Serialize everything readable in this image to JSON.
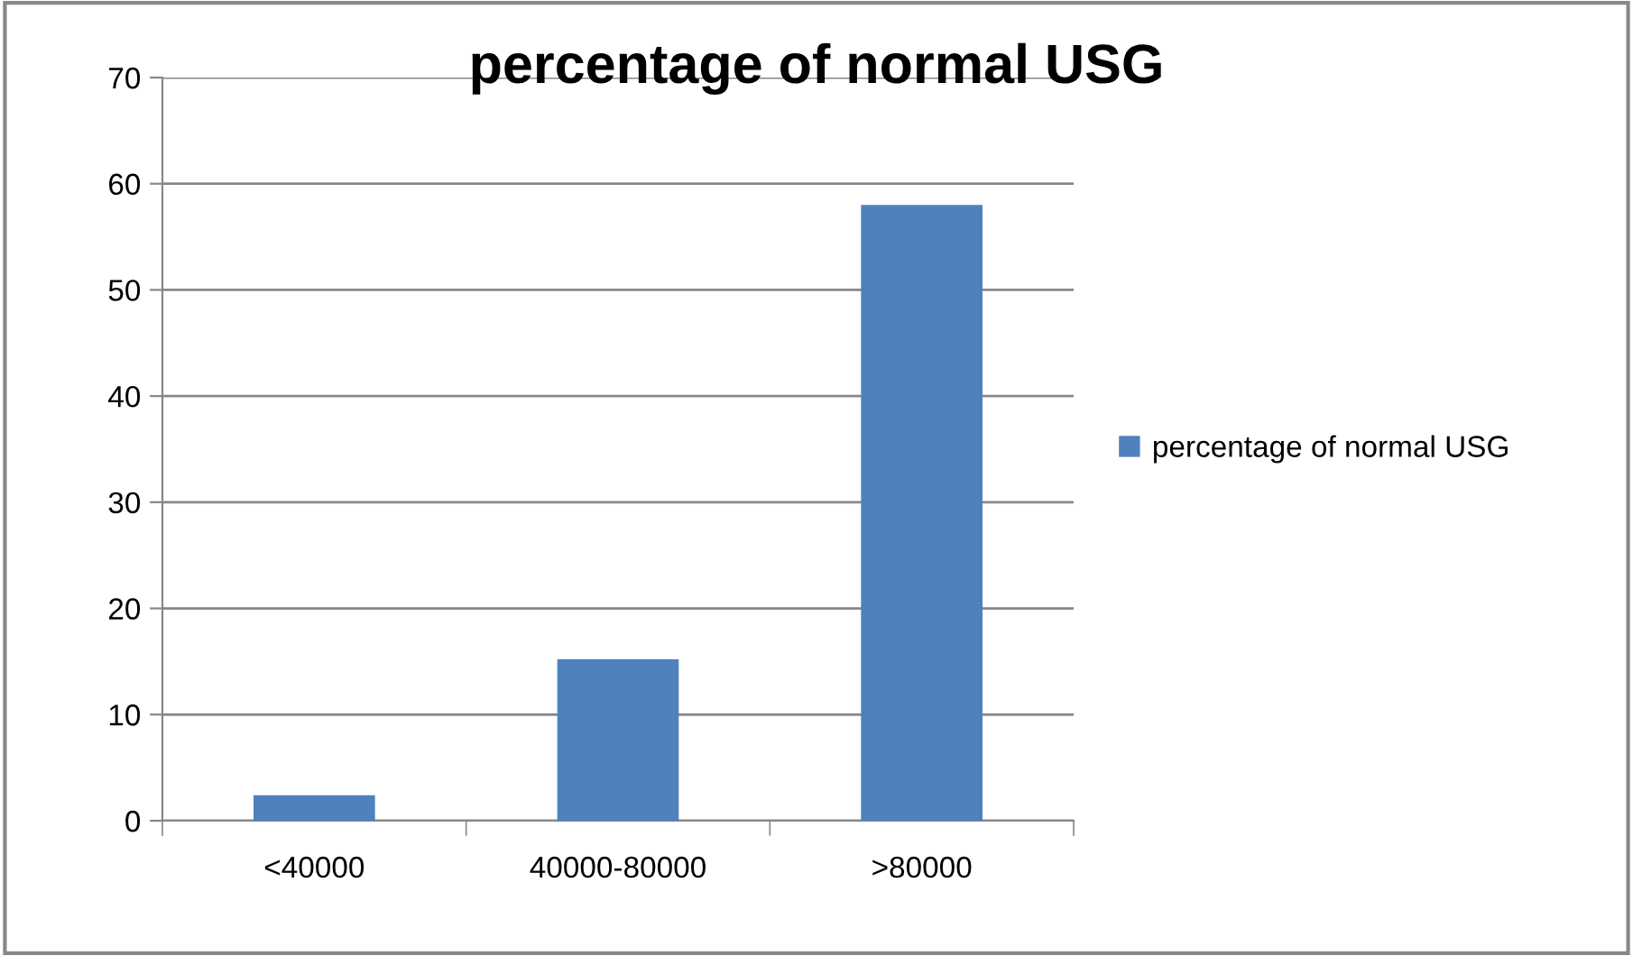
{
  "chart_data": {
    "type": "bar",
    "title": "percentage of normal USG",
    "categories": [
      "<40000",
      "40000-80000",
      ">80000"
    ],
    "series": [
      {
        "name": "percentage of normal USG",
        "color": "#4f81bd",
        "values": [
          2.4,
          15.2,
          58
        ]
      }
    ],
    "ylim": [
      0,
      70
    ],
    "yticks": [
      0,
      10,
      20,
      30,
      40,
      50,
      60,
      70
    ],
    "grid": "y",
    "legend": "right"
  }
}
